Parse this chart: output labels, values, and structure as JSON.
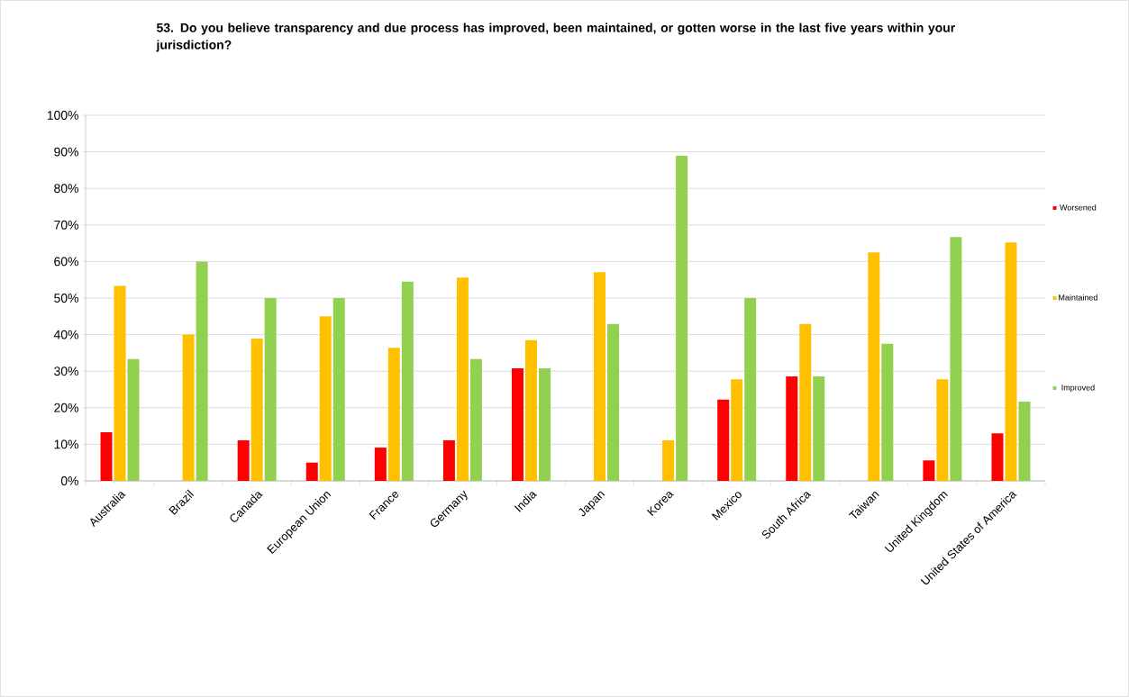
{
  "chart_data": {
    "type": "bar",
    "title": "53. Do you believe transparency and due process has improved, been maintained, or gotten worse in the last five years within your jurisdiction?",
    "categories": [
      "Australia",
      "Brazil",
      "Canada",
      "European Union",
      "France",
      "Germany",
      "India",
      "Japan",
      "Korea",
      "Mexico",
      "South Africa",
      "Taiwan",
      "United Kingdom",
      "United States of America"
    ],
    "series": [
      {
        "name": "Worsened",
        "color": "#ff0000",
        "values": [
          13.3,
          0,
          11.1,
          5,
          9.1,
          11.1,
          30.8,
          0,
          0,
          22.2,
          28.6,
          0,
          5.6,
          13
        ]
      },
      {
        "name": "Maintained",
        "color": "#ffc000",
        "values": [
          53.3,
          40,
          38.9,
          45,
          36.4,
          55.6,
          38.5,
          57.1,
          11.1,
          27.8,
          42.9,
          62.5,
          27.8,
          65.2
        ]
      },
      {
        "name": "Improved",
        "color": "#92d050",
        "values": [
          33.3,
          60,
          50,
          50,
          54.5,
          33.3,
          30.8,
          42.9,
          88.9,
          50,
          28.6,
          37.5,
          66.7,
          21.7
        ]
      }
    ],
    "ylim": [
      0,
      100
    ],
    "yticks": [
      {
        "value": 0,
        "label": "0%"
      },
      {
        "value": 10,
        "label": "10%"
      },
      {
        "value": 20,
        "label": "20%"
      },
      {
        "value": 30,
        "label": "30%"
      },
      {
        "value": 40,
        "label": "40%"
      },
      {
        "value": 50,
        "label": "50%"
      },
      {
        "value": 60,
        "label": "60%"
      },
      {
        "value": 70,
        "label": "70%"
      },
      {
        "value": 80,
        "label": "80%"
      },
      {
        "value": 90,
        "label": "90%"
      },
      {
        "value": 100,
        "label": "100%"
      }
    ],
    "grid": "y",
    "legend": "right"
  }
}
